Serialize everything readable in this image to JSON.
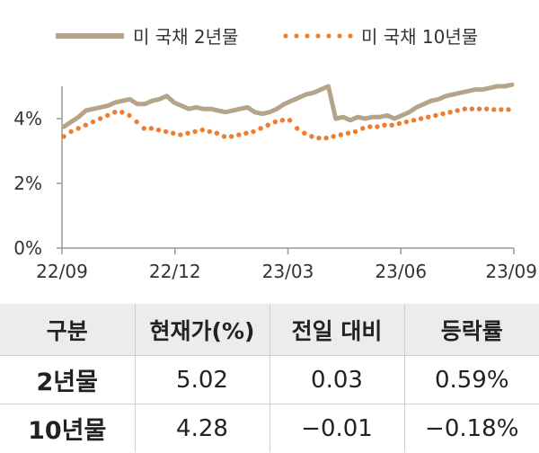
{
  "chart_data": {
    "type": "line",
    "series": [
      {
        "name": "미 국채 2년물",
        "style": "solid",
        "color": "#b5a48a",
        "values": [
          3.75,
          3.9,
          4.05,
          4.25,
          4.3,
          4.35,
          4.4,
          4.5,
          4.55,
          4.6,
          4.45,
          4.45,
          4.55,
          4.6,
          4.7,
          4.5,
          4.4,
          4.3,
          4.35,
          4.3,
          4.3,
          4.25,
          4.2,
          4.25,
          4.3,
          4.35,
          4.2,
          4.15,
          4.2,
          4.3,
          4.45,
          4.55,
          4.65,
          4.75,
          4.8,
          4.9,
          5.0,
          4.0,
          4.05,
          3.95,
          4.05,
          4.0,
          4.05,
          4.05,
          4.1,
          4.0,
          4.1,
          4.2,
          4.35,
          4.45,
          4.55,
          4.6,
          4.7,
          4.75,
          4.8,
          4.85,
          4.9,
          4.9,
          4.95,
          5.0,
          5.0,
          5.05
        ]
      },
      {
        "name": "미 국채 10년물",
        "style": "dotted",
        "color": "#ed7d31",
        "values": [
          3.45,
          3.6,
          3.7,
          3.8,
          3.9,
          4.0,
          4.1,
          4.2,
          4.2,
          4.1,
          3.9,
          3.7,
          3.7,
          3.65,
          3.6,
          3.55,
          3.5,
          3.55,
          3.6,
          3.65,
          3.6,
          3.55,
          3.45,
          3.45,
          3.5,
          3.55,
          3.6,
          3.7,
          3.8,
          3.9,
          3.95,
          3.95,
          3.7,
          3.55,
          3.45,
          3.4,
          3.4,
          3.45,
          3.5,
          3.55,
          3.6,
          3.7,
          3.75,
          3.75,
          3.8,
          3.8,
          3.85,
          3.9,
          3.95,
          4.0,
          4.05,
          4.1,
          4.15,
          4.2,
          4.25,
          4.3,
          4.3,
          4.3,
          4.3,
          4.28,
          4.28,
          4.28
        ]
      }
    ],
    "x_ticks": [
      "22/09",
      "22/12",
      "23/03",
      "23/06",
      "23/09"
    ],
    "y_ticks": [
      "0%",
      "2%",
      "4%"
    ],
    "ylim": [
      0,
      5
    ],
    "legend_position": "top"
  },
  "table": {
    "headers": [
      "구분",
      "현재가(%)",
      "전일 대비",
      "등락률"
    ],
    "rows": [
      [
        "2년물",
        "5.02",
        "0.03",
        "0.59%"
      ],
      [
        "10년물",
        "4.28",
        "−0.01",
        "−0.18%"
      ]
    ]
  }
}
